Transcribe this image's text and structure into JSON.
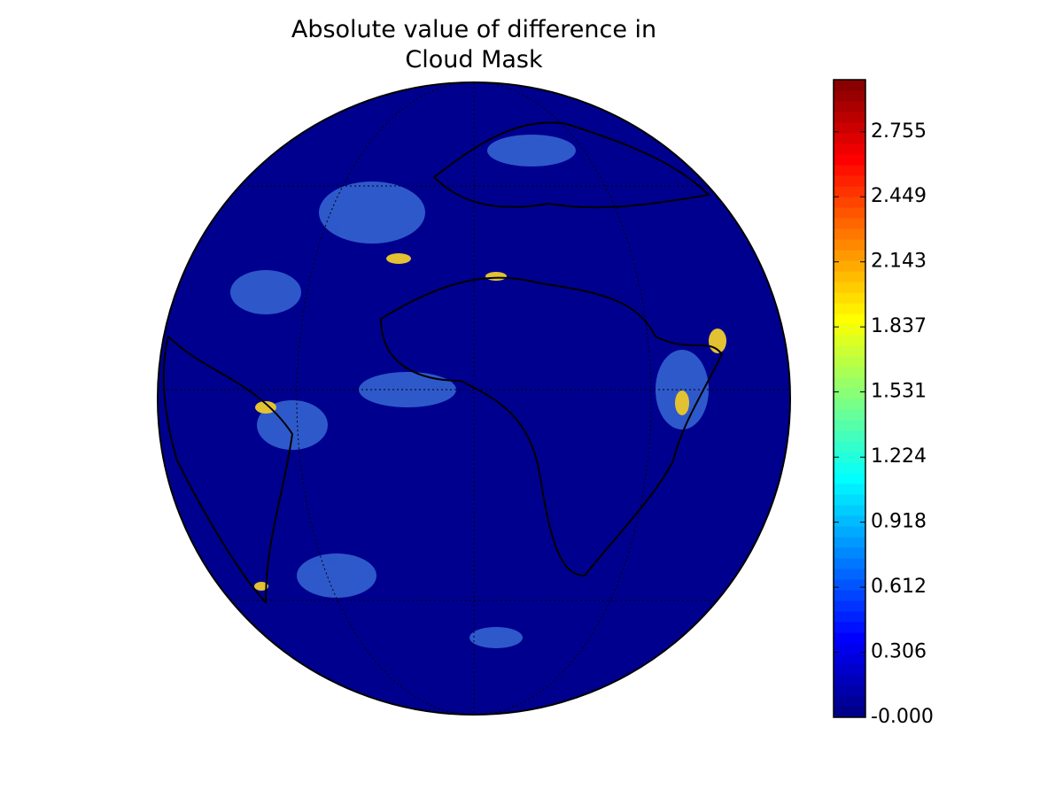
{
  "chart_data": {
    "type": "map",
    "title": "Absolute value of difference in\nCloud Mask",
    "colormap": "jet",
    "clim": [
      0,
      3.0
    ],
    "cticks": [
      {
        "value": 0,
        "label": "-0.000"
      },
      0.306,
      0.612,
      0.918,
      1.224,
      1.531,
      1.837,
      2.143,
      2.449,
      2.755
    ]
  }
}
